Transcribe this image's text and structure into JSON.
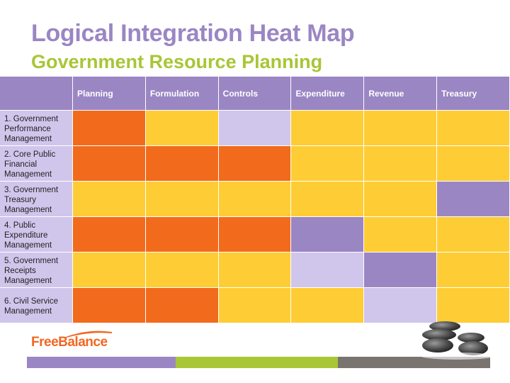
{
  "title": "Logical Integration Heat Map",
  "subtitle": "Government Resource Planning",
  "colors": {
    "high": "#f26b1d",
    "medium": "#fecd35",
    "low": "#d0c6ec",
    "strong": "#9b86c4",
    "header": "#9b86c4",
    "title": "#9b86c4",
    "subtitle": "#a8c636"
  },
  "table": {
    "columns": [
      "Planning",
      "Formulation",
      "Controls",
      "Expenditure",
      "Revenue",
      "Treasury"
    ],
    "rows": [
      {
        "label": "1. Government Performance Management",
        "cells": [
          "high",
          "medium",
          "low",
          "medium",
          "medium",
          "medium"
        ]
      },
      {
        "label": "2. Core Public Financial Management",
        "cells": [
          "high",
          "high",
          "high",
          "medium",
          "medium",
          "medium"
        ]
      },
      {
        "label": "3. Government Treasury Management",
        "cells": [
          "medium",
          "medium",
          "medium",
          "medium",
          "medium",
          "strong"
        ]
      },
      {
        "label": "4. Public Expenditure Management",
        "cells": [
          "high",
          "high",
          "high",
          "strong",
          "medium",
          "medium"
        ]
      },
      {
        "label": "5. Government Receipts Management",
        "cells": [
          "medium",
          "medium",
          "medium",
          "low",
          "strong",
          "medium"
        ]
      },
      {
        "label": "6. Civil Service Management",
        "cells": [
          "high",
          "high",
          "medium",
          "medium",
          "low",
          "medium"
        ]
      }
    ]
  },
  "logo": {
    "text": "FreeBalance",
    "icon": "swoosh-icon"
  },
  "footer": {
    "colors": [
      "#9b86c4",
      "#a8c636",
      "#7a7471"
    ]
  },
  "decoration": {
    "icon": "stacked-stones-icon"
  }
}
